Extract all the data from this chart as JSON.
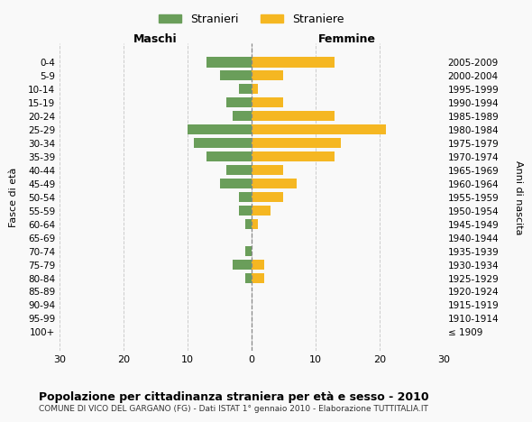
{
  "age_groups": [
    "100+",
    "95-99",
    "90-94",
    "85-89",
    "80-84",
    "75-79",
    "70-74",
    "65-69",
    "60-64",
    "55-59",
    "50-54",
    "45-49",
    "40-44",
    "35-39",
    "30-34",
    "25-29",
    "20-24",
    "15-19",
    "10-14",
    "5-9",
    "0-4"
  ],
  "birth_years": [
    "≤ 1909",
    "1910-1914",
    "1915-1919",
    "1920-1924",
    "1925-1929",
    "1930-1934",
    "1935-1939",
    "1940-1944",
    "1945-1949",
    "1950-1954",
    "1955-1959",
    "1960-1964",
    "1965-1969",
    "1970-1974",
    "1975-1979",
    "1980-1984",
    "1985-1989",
    "1990-1994",
    "1995-1999",
    "2000-2004",
    "2005-2009"
  ],
  "maschi": [
    0,
    0,
    0,
    0,
    1,
    3,
    1,
    0,
    1,
    2,
    2,
    5,
    4,
    7,
    9,
    10,
    3,
    4,
    2,
    5,
    7
  ],
  "femmine": [
    0,
    0,
    0,
    0,
    2,
    2,
    0,
    0,
    1,
    3,
    5,
    7,
    5,
    13,
    14,
    21,
    13,
    5,
    1,
    5,
    13
  ],
  "color_maschi": "#6a9e5a",
  "color_femmine": "#f5b722",
  "title": "Popolazione per cittadinanza straniera per età e sesso - 2010",
  "subtitle": "COMUNE DI VICO DEL GARGANO (FG) - Dati ISTAT 1° gennaio 2010 - Elaborazione TUTTITALIA.IT",
  "legend_maschi": "Stranieri",
  "legend_femmine": "Straniere",
  "xlabel_left": "Maschi",
  "xlabel_right": "Femmine",
  "ylabel_left": "Fasce di età",
  "ylabel_right": "Anni di nascita",
  "xlim": 30,
  "background_color": "#f9f9f9",
  "grid_color": "#cccccc"
}
